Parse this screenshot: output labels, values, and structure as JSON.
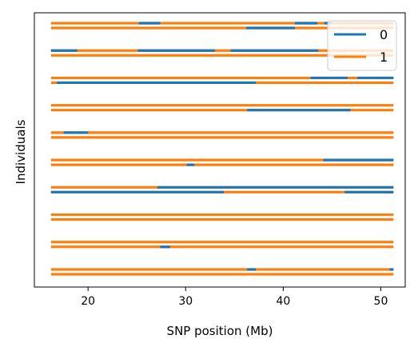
{
  "chart_data": {
    "type": "haplotype-segments",
    "xlabel": "SNP position (Mb)",
    "ylabel": "Individuals",
    "xlim": [
      14.5,
      52.5
    ],
    "x_ticks": [
      20,
      30,
      40,
      50
    ],
    "x_tick_labels": [
      "20",
      "30",
      "40",
      "50"
    ],
    "y_ticks": false,
    "grid": false,
    "legend": {
      "placement": "top-right",
      "entries": [
        {
          "label": "0",
          "color": "#1f77b4"
        },
        {
          "label": "1",
          "color": "#ff7f0e"
        }
      ]
    },
    "colors": {
      "0": "#1f77b4",
      "1": "#ff7f0e"
    },
    "start": 16.2,
    "end": 51.3,
    "individuals": [
      {
        "hap1": [
          [
            25.2,
            27.4
          ],
          [
            41.2,
            43.5
          ],
          [
            44.2,
            45.0
          ]
        ],
        "hap2": [
          [
            36.2,
            41.2
          ]
        ]
      },
      {
        "hap1": [
          [
            16.2,
            18.9
          ],
          [
            25.1,
            33.0
          ],
          [
            34.6,
            43.6
          ]
        ],
        "hap2": []
      },
      {
        "hap1": [
          [
            42.8,
            46.6
          ],
          [
            47.6,
            51.3
          ]
        ],
        "hap2": [
          [
            16.8,
            37.2
          ]
        ]
      },
      {
        "hap1": [],
        "hap2": [
          [
            36.3,
            46.9
          ]
        ]
      },
      {
        "hap1": [
          [
            17.5,
            20.0
          ]
        ],
        "hap2": []
      },
      {
        "hap1": [
          [
            44.1,
            51.3
          ]
        ],
        "hap2": [
          [
            30.1,
            30.9
          ]
        ]
      },
      {
        "hap1": [
          [
            27.1,
            51.3
          ]
        ],
        "hap2": [
          [
            16.2,
            33.9
          ],
          [
            46.3,
            51.3
          ]
        ]
      },
      {
        "hap1": [],
        "hap2": []
      },
      {
        "hap1": [],
        "hap2": [
          [
            27.4,
            28.4
          ]
        ]
      },
      {
        "hap1": [
          [
            36.3,
            37.2
          ],
          [
            50.9,
            51.3
          ]
        ],
        "hap2": []
      }
    ]
  }
}
